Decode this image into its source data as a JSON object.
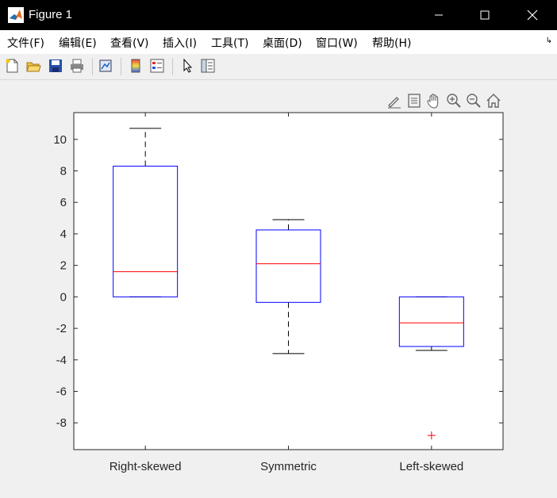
{
  "window": {
    "title": "Figure 1",
    "controls": [
      "minimize",
      "maximize",
      "close"
    ]
  },
  "menu": {
    "items": [
      "文件(F)",
      "编辑(E)",
      "查看(V)",
      "插入(I)",
      "工具(T)",
      "桌面(D)",
      "窗口(W)",
      "帮助(H)"
    ]
  },
  "toolbar": {
    "buttons": [
      "new-figure-icon",
      "open-file-icon",
      "save-icon",
      "print-icon",
      "link-plot-icon",
      "colorbar-icon",
      "legend-icon",
      "pointer-icon",
      "property-inspector-icon"
    ]
  },
  "axes_toolbar": {
    "buttons": [
      "brush-icon",
      "data-tips-icon",
      "pan-icon",
      "zoom-in-icon",
      "zoom-out-icon",
      "home-icon"
    ]
  },
  "chart_data": {
    "type": "boxplot",
    "categories": [
      "Right-skewed",
      "Symmetric",
      "Left-skewed"
    ],
    "ylim": [
      -9.7,
      11.7
    ],
    "yticks": [
      10,
      8,
      6,
      4,
      2,
      0,
      -2,
      -4,
      -6,
      -8
    ],
    "boxes": [
      {
        "name": "Right-skewed",
        "whisker_low": 0.0,
        "q1": 0.0,
        "median": 1.6,
        "q3": 8.3,
        "whisker_high": 10.7,
        "outliers": []
      },
      {
        "name": "Symmetric",
        "whisker_low": -3.6,
        "q1": -0.35,
        "median": 2.1,
        "q3": 4.25,
        "whisker_high": 4.9,
        "outliers": []
      },
      {
        "name": "Left-skewed",
        "whisker_low": -3.4,
        "q1": -3.15,
        "median": -1.65,
        "q3": 0.0,
        "whisker_high": 0.0,
        "outliers": [
          -8.8
        ]
      }
    ],
    "colors": {
      "box": "#0000ff",
      "median": "#ff0000",
      "whisker": "#000000",
      "outlier": "#ff0000"
    },
    "grid": false
  }
}
